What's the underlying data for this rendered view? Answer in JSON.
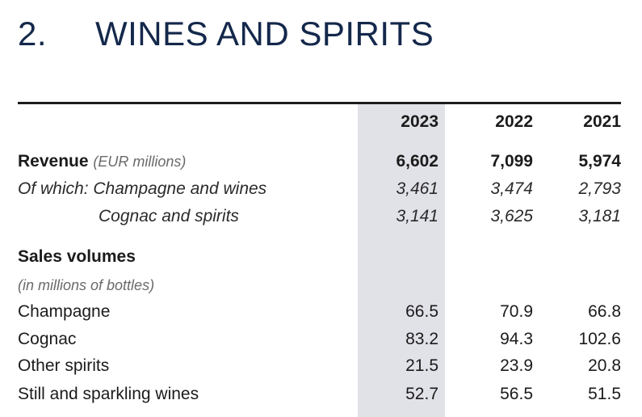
{
  "section": {
    "number": "2.",
    "title": "WINES AND SPIRITS"
  },
  "table": {
    "years": [
      "2023",
      "2022",
      "2021"
    ],
    "revenue": {
      "label": "Revenue",
      "unit": "(EUR millions)",
      "values": [
        "6,602",
        "7,099",
        "5,974"
      ]
    },
    "of_which_1": {
      "label": "Of which: Champagne and wines",
      "values": [
        "3,461",
        "3,474",
        "2,793"
      ]
    },
    "of_which_2": {
      "label": "Cognac and spirits",
      "values": [
        "3,141",
        "3,625",
        "3,181"
      ]
    },
    "sales_volumes": {
      "label": "Sales volumes",
      "unit": "(in millions of bottles)"
    },
    "rows": [
      {
        "label": "Champagne",
        "values": [
          "66.5",
          "70.9",
          "66.8"
        ]
      },
      {
        "label": "Cognac",
        "values": [
          "83.2",
          "94.3",
          "102.6"
        ]
      },
      {
        "label": "Other spirits",
        "values": [
          "21.5",
          "23.9",
          "20.8"
        ]
      },
      {
        "label": "Still and sparkling wines",
        "values": [
          "52.7",
          "56.5",
          "51.5"
        ]
      }
    ]
  }
}
